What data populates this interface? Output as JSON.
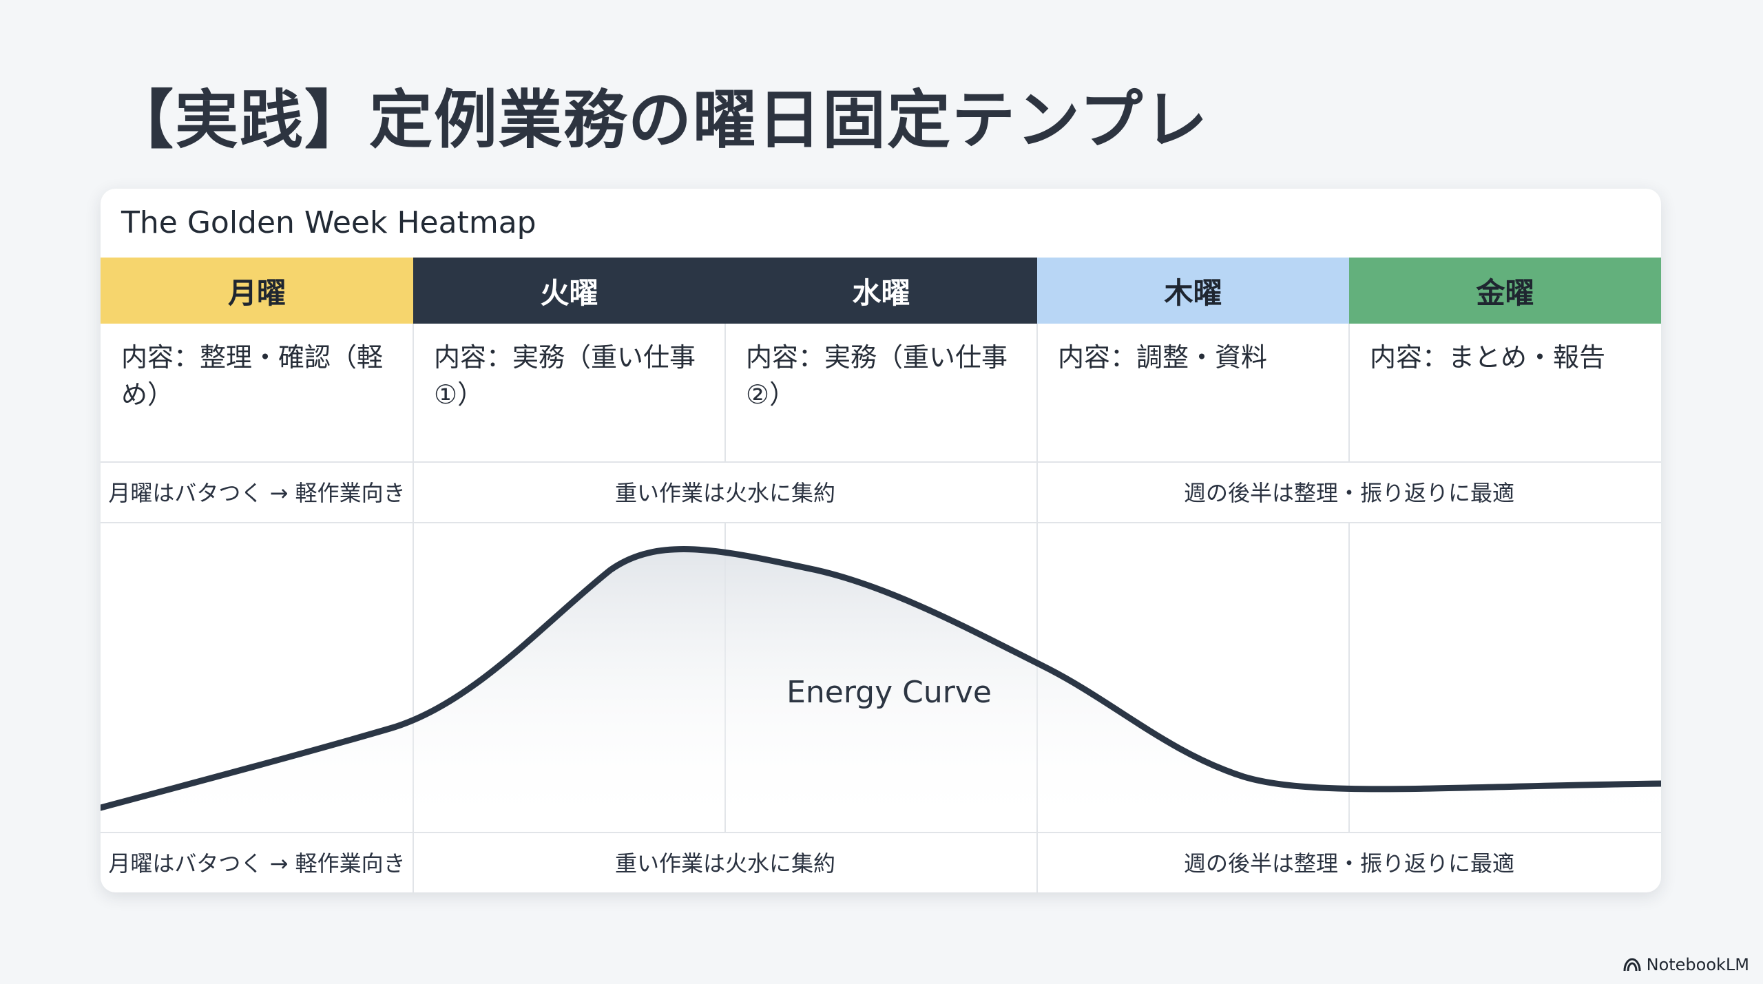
{
  "slide": {
    "title": "【実践】定例業務の曜日固定テンプレ"
  },
  "card": {
    "title": "The Golden Week Heatmap"
  },
  "days": [
    {
      "label": "月曜",
      "color": "#f6d56d",
      "text_color": "#1f2630",
      "content": "内容：整理・確認（軽め）"
    },
    {
      "label": "火曜",
      "color": "#2b3645",
      "text_color": "#ffffff",
      "content": "内容：実務（重い仕事①）"
    },
    {
      "label": "水曜",
      "color": "#2b3645",
      "text_color": "#ffffff",
      "content": "内容：実務（重い仕事②）"
    },
    {
      "label": "木曜",
      "color": "#b8d6f5",
      "text_color": "#1f2630",
      "content": "内容：調整・資料"
    },
    {
      "label": "金曜",
      "color": "#63b07c",
      "text_color": "#1f2630",
      "content": "内容：まとめ・報告"
    }
  ],
  "notes": [
    "月曜はバタつく → 軽作業向き",
    "重い作業は火水に集約",
    "週の後半は整理・振り返りに最適"
  ],
  "energy_curve": {
    "label": "Energy Curve",
    "stroke_color": "#2b3645"
  },
  "watermark": {
    "text": "NotebookLM",
    "icon": "notebooklm-logo-icon"
  }
}
